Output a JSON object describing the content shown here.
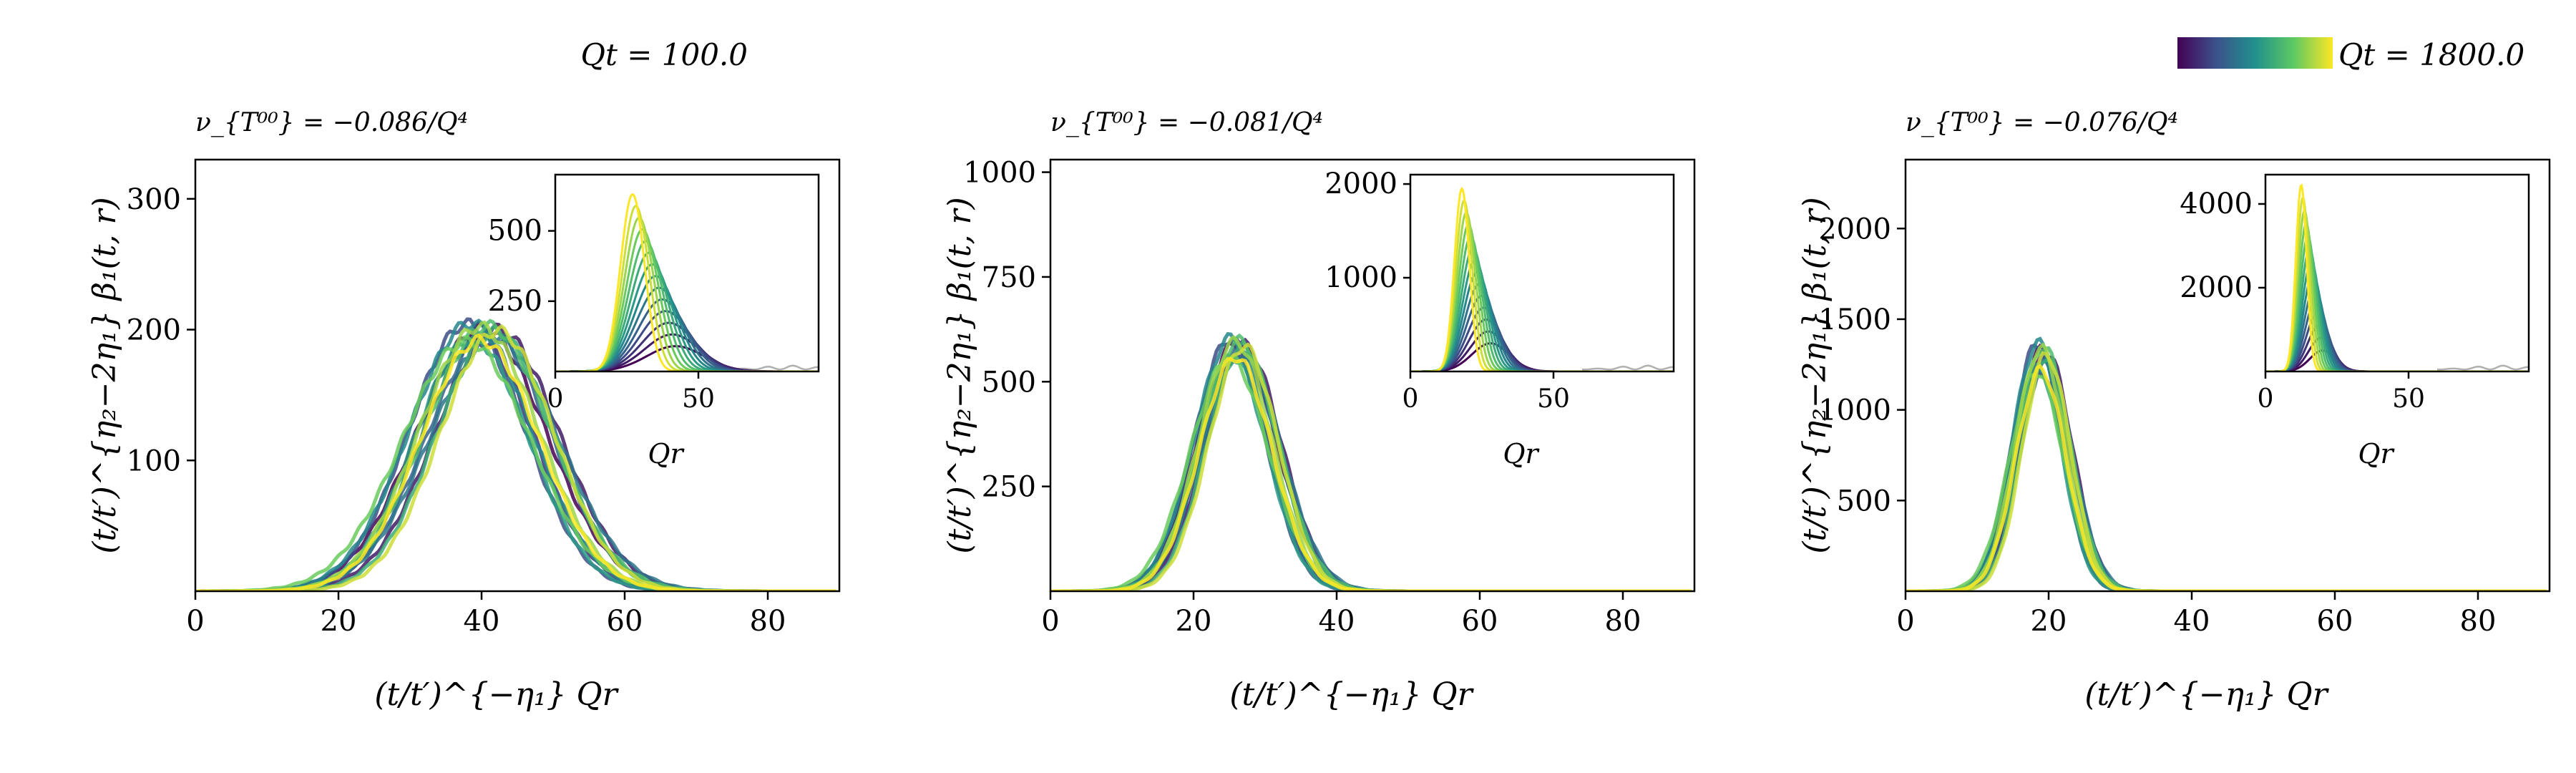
{
  "colorbar": {
    "label_min": "Qt = 100.0",
    "label_max": "Qt = 1800.0",
    "colors": [
      "#440154",
      "#3b528b",
      "#21918c",
      "#5ec962",
      "#fde725"
    ]
  },
  "chart_data": [
    {
      "type": "line",
      "title": "ν_{T⁰⁰} = −0.086/Q⁴",
      "xlabel": "(t/t′)^{−η₁} Qr",
      "ylabel": "(t/t′)^{η₂−2η₁} β₁(t, r)",
      "xlim": [
        0,
        90
      ],
      "ylim": [
        0,
        330
      ],
      "xticks": [
        "0",
        "20",
        "40",
        "60",
        "80"
      ],
      "yticks": [
        "100",
        "200",
        "300"
      ],
      "ytick_values": [
        100,
        200,
        300
      ],
      "xtick_values": [
        0,
        20,
        40,
        60,
        80
      ],
      "curve_family": {
        "center": 40,
        "width": 8.5,
        "peak": 198,
        "peak_spread": 14,
        "center_spread": 2.2,
        "count": 14
      },
      "inset": {
        "xlabel": "Qr",
        "xlim": [
          0,
          92
        ],
        "ylim": [
          0,
          700
        ],
        "xticks": [
          "0",
          "50"
        ],
        "xtick_values": [
          0,
          50
        ],
        "yticks": [
          "250",
          "500"
        ],
        "ytick_values": [
          250,
          500
        ],
        "curve_family": {
          "center_min": 27,
          "center_max": 42,
          "peak_min": 90,
          "peak_max": 630,
          "width_min": 4.2,
          "width_max": 10,
          "count": 14
        }
      }
    },
    {
      "type": "line",
      "title": "ν_{T⁰⁰} = −0.081/Q⁴",
      "xlabel": "(t/t′)^{−η₁} Qr",
      "ylabel": "(t/t′)^{η₂−2η₁} β₁(t, r)",
      "xlim": [
        0,
        90
      ],
      "ylim": [
        0,
        1030
      ],
      "xticks": [
        "0",
        "20",
        "40",
        "60",
        "80"
      ],
      "yticks": [
        "250",
        "500",
        "750",
        "1000"
      ],
      "ytick_values": [
        250,
        500,
        750,
        1000
      ],
      "xtick_values": [
        0,
        20,
        40,
        60,
        80
      ],
      "curve_family": {
        "center": 26,
        "width": 5.2,
        "peak": 580,
        "peak_spread": 50,
        "center_spread": 1.0,
        "count": 14
      },
      "inset": {
        "xlabel": "Qr",
        "xlim": [
          0,
          92
        ],
        "ylim": [
          0,
          2100
        ],
        "xticks": [
          "0",
          "50"
        ],
        "xtick_values": [
          0,
          50
        ],
        "yticks": [
          "1000",
          "2000"
        ],
        "ytick_values": [
          1000,
          2000
        ],
        "curve_family": {
          "center_min": 18,
          "center_max": 28,
          "peak_min": 300,
          "peak_max": 1950,
          "width_min": 2.6,
          "width_max": 6.5,
          "count": 14
        }
      }
    },
    {
      "type": "line",
      "title": "ν_{T⁰⁰} = −0.076/Q⁴",
      "xlabel": "(t/t′)^{−η₁} Qr",
      "ylabel": "(t/t′)^{η₂−2η₁} β₁(t, r)",
      "xlim": [
        0,
        90
      ],
      "ylim": [
        0,
        2380
      ],
      "xticks": [
        "0",
        "20",
        "40",
        "60",
        "80"
      ],
      "yticks": [
        "500",
        "1000",
        "1500",
        "2000"
      ],
      "ytick_values": [
        500,
        1000,
        1500,
        2000
      ],
      "xtick_values": [
        0,
        20,
        40,
        60,
        80
      ],
      "curve_family": {
        "center": 19,
        "width": 3.6,
        "peak": 1290,
        "peak_spread": 160,
        "center_spread": 0.7,
        "count": 14
      },
      "inset": {
        "xlabel": "Qr",
        "xlim": [
          0,
          92
        ],
        "ylim": [
          0,
          4700
        ],
        "xticks": [
          "0",
          "50"
        ],
        "xtick_values": [
          0,
          50
        ],
        "yticks": [
          "2000",
          "4000"
        ],
        "ytick_values": [
          2000,
          4000
        ],
        "curve_family": {
          "center_min": 12.5,
          "center_max": 20,
          "peak_min": 500,
          "peak_max": 4450,
          "width_min": 1.9,
          "width_max": 4.5,
          "count": 14
        }
      }
    }
  ]
}
